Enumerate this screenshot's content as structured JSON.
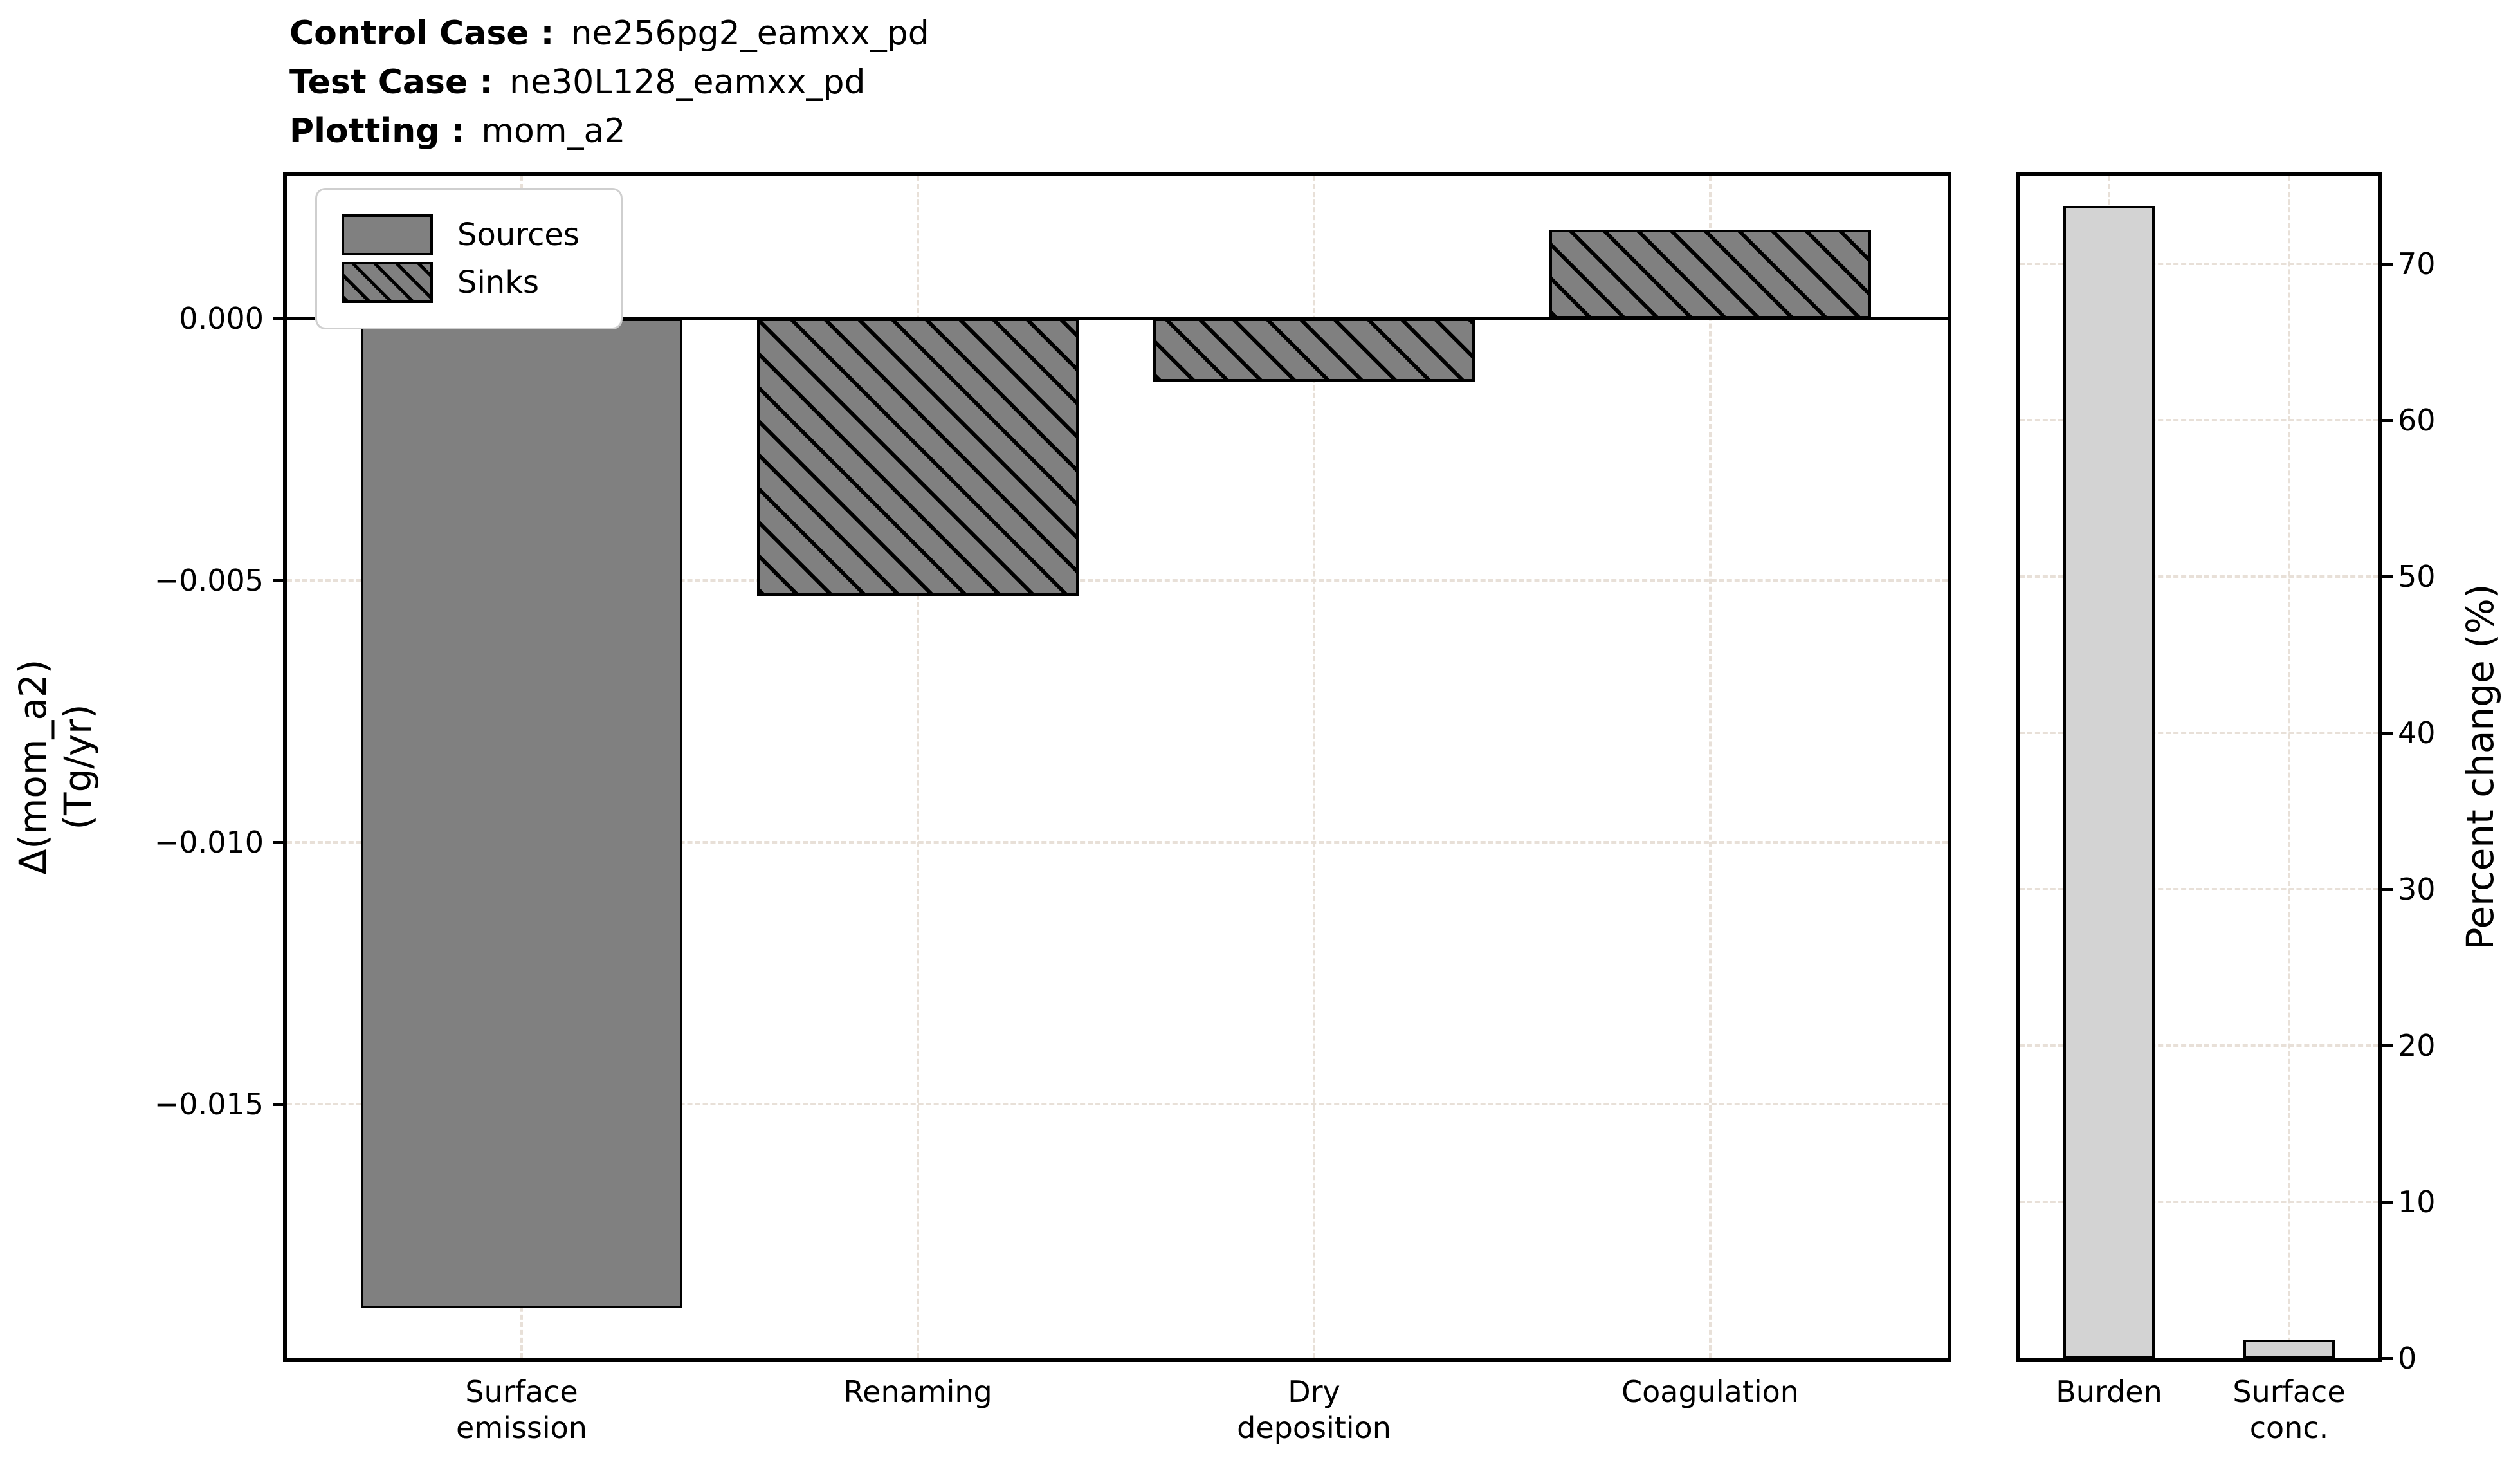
{
  "header": {
    "rows": [
      {
        "label": "Control Case :",
        "value": "ne256pg2_eamxx_pd"
      },
      {
        "label": "Test Case :",
        "value": "ne30L128_eamxx_pd"
      },
      {
        "label": "Plotting :",
        "value": "mom_a2"
      }
    ]
  },
  "legend": {
    "items": [
      {
        "label": "Sources",
        "pattern": "solid"
      },
      {
        "label": "Sinks",
        "pattern": "hatched"
      }
    ]
  },
  "colors": {
    "bar_gray": "#808080",
    "bar_lightgray": "#d3d3d3",
    "bar_edge": "#000000",
    "grid": "#e8e0d8"
  },
  "chart_data": [
    {
      "id": "flux",
      "type": "bar",
      "categories": [
        "Surface\nemission",
        "Renaming",
        "Dry\ndeposition",
        "Coagulation"
      ],
      "values": [
        -0.0189,
        -0.0053,
        -0.0012,
        0.0017
      ],
      "groups": [
        "source",
        "sink",
        "sink",
        "sink"
      ],
      "ylabel_lines": [
        "Δ(mom_a2)",
        "(Tg/yr)"
      ],
      "ytick_values": [
        0.0,
        -0.005,
        -0.01,
        -0.015
      ],
      "ytick_labels": [
        "0.000",
        "−0.005",
        "−0.010",
        "−0.015"
      ],
      "ylim": [
        -0.0199,
        0.0028
      ],
      "zero_line": true,
      "grid": true,
      "legend": [
        "Sources",
        "Sinks"
      ]
    },
    {
      "id": "percent",
      "type": "bar",
      "categories": [
        "Burden",
        "Surface\nconc."
      ],
      "values": [
        73.7,
        1.2
      ],
      "groups": [
        "plain",
        "plain"
      ],
      "ylabel": "Percent change (%)",
      "ytick_values": [
        0,
        10,
        20,
        30,
        40,
        50,
        60,
        70
      ],
      "ytick_labels": [
        "0",
        "10",
        "20",
        "30",
        "40",
        "50",
        "60",
        "70"
      ],
      "ylim": [
        0,
        76
      ],
      "zero_line": false,
      "grid": true
    }
  ]
}
